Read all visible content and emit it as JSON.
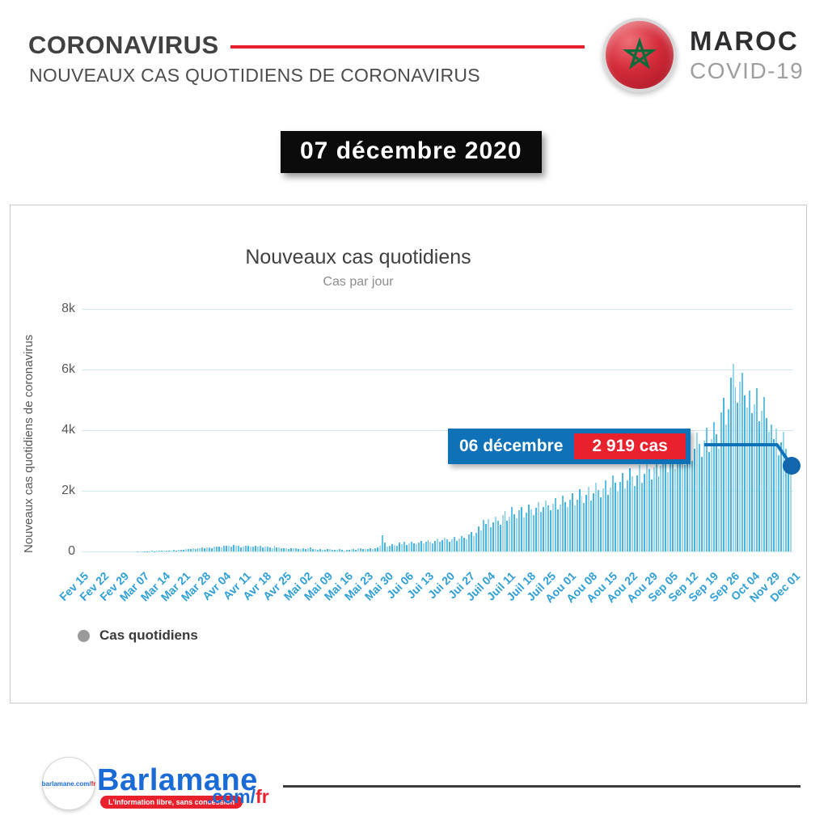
{
  "header": {
    "title": "CORONAVIRUS",
    "subtitle": "NOUVEAUX CAS QUOTIDIENS DE CORONAVIRUS"
  },
  "badge": {
    "country": "MAROC",
    "program": "COVID-19",
    "flag": "morocco-flag",
    "flag_colors": {
      "red": "#c8102e",
      "green": "#0a6b3a"
    }
  },
  "date_banner": "07 décembre 2020",
  "chart_data": {
    "type": "bar",
    "title": "Nouveaux cas quotidiens",
    "subtitle": "Cas par jour",
    "ylabel": "Nouveaux cas quotidiens de coronavirus",
    "ylim": [
      0,
      8000
    ],
    "ytick_labels": [
      "8k",
      "6k",
      "4k",
      "2k",
      "0"
    ],
    "grid": true,
    "legend_position": "bottom-left",
    "legend": [
      {
        "label": "Cas quotidiens",
        "color": "#9a9a9a"
      }
    ],
    "bar_colors": [
      "#45b4df",
      "#9bd8ee",
      "#5fc2e6"
    ],
    "x_tick_labels": [
      "Fev 15",
      "Fev 22",
      "Fev 29",
      "Mar 07",
      "Mar 14",
      "Mar 21",
      "Mar 28",
      "Avr 04",
      "Avr 11",
      "Avr 18",
      "Avr 25",
      "Mai 02",
      "Mai 09",
      "Mai 16",
      "Mai 23",
      "Mai 30",
      "Jui 06",
      "Jui 13",
      "Jui 20",
      "Jui 27",
      "Juil 04",
      "Juil 11",
      "Juil 18",
      "Juil 25",
      "Aou 01",
      "Aou 08",
      "Aou 15",
      "Aou 22",
      "Aou 29",
      "Sep 05",
      "Sep 12",
      "Sep 19",
      "Sep 26",
      "Oct 04",
      "Nov 29",
      "Dec 01"
    ],
    "values": [
      0,
      0,
      0,
      0,
      0,
      0,
      0,
      0,
      0,
      0,
      0,
      0,
      0,
      0,
      1,
      0,
      1,
      1,
      0,
      2,
      1,
      2,
      1,
      3,
      2,
      5,
      3,
      8,
      10,
      17,
      9,
      24,
      15,
      28,
      26,
      23,
      35,
      30,
      42,
      36,
      48,
      53,
      64,
      91,
      70,
      85,
      103,
      87,
      97,
      110,
      125,
      98,
      130,
      145,
      120,
      160,
      155,
      168,
      140,
      175,
      190,
      185,
      170,
      215,
      190,
      175,
      140,
      160,
      190,
      180,
      170,
      155,
      190,
      165,
      175,
      140,
      160,
      150,
      135,
      120,
      189,
      140,
      125,
      110,
      100,
      115,
      90,
      105,
      120,
      95,
      85,
      80,
      95,
      70,
      110,
      130,
      85,
      75,
      60,
      80,
      50,
      65,
      90,
      70,
      55,
      45,
      60,
      75,
      50,
      40,
      65,
      55,
      70,
      85,
      60,
      95,
      110,
      80,
      70,
      90,
      120,
      75,
      100,
      140,
      180,
      539,
      300,
      160,
      190,
      240,
      210,
      175,
      305,
      250,
      310,
      220,
      270,
      330,
      280,
      240,
      290,
      350,
      260,
      310,
      380,
      320,
      270,
      340,
      420,
      310,
      370,
      450,
      390,
      330,
      410,
      480,
      350,
      440,
      520,
      460,
      400,
      570,
      633,
      520,
      610,
      826,
      700,
      1046,
      900,
      1063,
      810,
      970,
      1140,
      1018,
      880,
      1210,
      1345,
      1020,
      1160,
      1470,
      1240,
      1090,
      1360,
      1472,
      1130,
      1290,
      1560,
      1380,
      1210,
      1440,
      1620,
      1310,
      1480,
      1690,
      1520,
      1350,
      1570,
      1760,
      1400,
      1550,
      1850,
      1640,
      1480,
      1700,
      1920,
      1530,
      1710,
      2050,
      1830,
      1610,
      1880,
      2130,
      1690,
      1910,
      2280,
      2040,
      1780,
      2070,
      2350,
      1870,
      2120,
      2520,
      2260,
      1970,
      2290,
      2600,
      2070,
      2340,
      2760,
      2480,
      2170,
      2520,
      2850,
      2260,
      2570,
      3020,
      2720,
      2380,
      2770,
      3120,
      2480,
      2820,
      3300,
      2980,
      2610,
      3040,
      3410,
      2720,
      3090,
      3600,
      3250,
      2850,
      3330,
      3720,
      2980,
      3380,
      3930,
      3540,
      3110,
      3650,
      4070,
      3270,
      3700,
      4280,
      3860,
      3400,
      4580,
      5060,
      4200,
      4700,
      5745,
      6195,
      5420,
      4900,
      5600,
      5900,
      5150,
      4750,
      5300,
      4550,
      4850,
      5400,
      4300,
      4650,
      5100,
      4400,
      3950,
      4200,
      3700,
      4045,
      3170,
      3600,
      3950,
      3400,
      3100,
      2919
    ],
    "tooltip": {
      "date": "06 décembre",
      "value_label": "2 919 cas",
      "value_numeric": 2919
    },
    "highlight_color": "#0f72b8"
  },
  "footer": {
    "brand": "Barlamane",
    "tagline": "L'information libre, sans concession",
    "domain_prefix": ".com/",
    "domain_suffix": "fr",
    "logo_text_prefix": "barlamane.com/",
    "logo_text_suffix": "fr"
  },
  "colors": {
    "accent_red": "#e8212d",
    "tooltip_blue": "#0f72b8",
    "bar_blue": "#45b4df",
    "axis_blue": "#2f9fd6",
    "brand_blue": "#1a6bd6"
  }
}
